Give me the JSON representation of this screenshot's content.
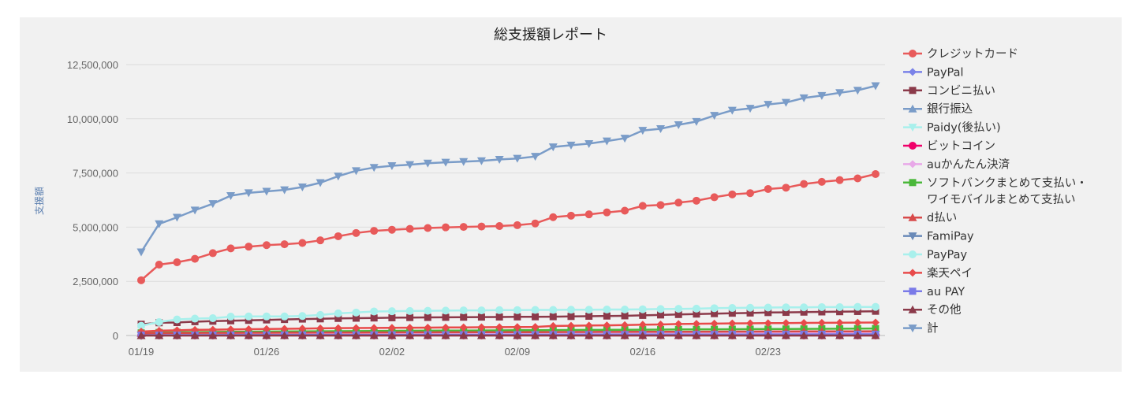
{
  "chart_data": {
    "type": "line",
    "title": "総支援額レポート",
    "ylabel": "支援額",
    "ylim": [
      0,
      13000000
    ],
    "yticks": [
      "0",
      "2,500,000",
      "5,000,000",
      "7,500,000",
      "10,000,000",
      "12,500,000"
    ],
    "ytick_values": [
      0,
      2500000,
      5000000,
      7500000,
      10000000,
      12500000
    ],
    "x": [
      "01/19",
      "01/20",
      "01/21",
      "01/22",
      "01/23",
      "01/24",
      "01/25",
      "01/26",
      "01/27",
      "01/28",
      "01/29",
      "01/30",
      "01/31",
      "02/01",
      "02/02",
      "02/03",
      "02/04",
      "02/05",
      "02/06",
      "02/07",
      "02/08",
      "02/09",
      "02/10",
      "02/11",
      "02/12",
      "02/13",
      "02/14",
      "02/15",
      "02/16",
      "02/17",
      "02/18",
      "02/19",
      "02/20",
      "02/21",
      "02/22",
      "02/23",
      "02/24",
      "02/25",
      "02/26",
      "02/27",
      "02/28",
      "03/01"
    ],
    "xticks": [
      "01/19",
      "01/26",
      "02/02",
      "02/09",
      "02/16",
      "02/23"
    ],
    "grid": true,
    "legend_position": "right",
    "series": [
      {
        "name": "クレジットカード",
        "color": "#e85a5a",
        "marker": "circle",
        "values": [
          2550000,
          3270000,
          3380000,
          3540000,
          3800000,
          4020000,
          4100000,
          4170000,
          4210000,
          4270000,
          4390000,
          4580000,
          4730000,
          4830000,
          4880000,
          4920000,
          4960000,
          4990000,
          5010000,
          5030000,
          5050000,
          5090000,
          5170000,
          5460000,
          5530000,
          5590000,
          5680000,
          5760000,
          5980000,
          6020000,
          6130000,
          6220000,
          6380000,
          6510000,
          6570000,
          6760000,
          6820000,
          6990000,
          7090000,
          7170000,
          7250000,
          7450000
        ]
      },
      {
        "name": "PayPal",
        "color": "#7a82e8",
        "marker": "diamond",
        "values": [
          30000,
          35000,
          38000,
          40000,
          42000,
          44000,
          45000,
          46000,
          47000,
          48000,
          49000,
          50000,
          51000,
          52000,
          53000,
          54000,
          55000,
          56000,
          57000,
          58000,
          59000,
          60000,
          61000,
          62000,
          63000,
          64000,
          65000,
          66000,
          67000,
          68000,
          69000,
          70000,
          71000,
          72000,
          73000,
          74000,
          75000,
          76000,
          77000,
          78000,
          79000,
          80000
        ]
      },
      {
        "name": "コンビニ払い",
        "color": "#8b3a4a",
        "marker": "square",
        "values": [
          520000,
          590000,
          600000,
          640000,
          660000,
          680000,
          700000,
          720000,
          740000,
          760000,
          770000,
          790000,
          800000,
          810000,
          820000,
          830000,
          835000,
          840000,
          845000,
          850000,
          855000,
          860000,
          865000,
          870000,
          880000,
          890000,
          900000,
          910000,
          930000,
          950000,
          970000,
          990000,
          1010000,
          1030000,
          1040000,
          1060000,
          1070000,
          1080000,
          1090000,
          1100000,
          1110000,
          1120000
        ]
      },
      {
        "name": "銀行振込",
        "color": "#7a9cc8",
        "marker": "triangle",
        "values": [
          90000,
          100000,
          105000,
          110000,
          115000,
          120000,
          122000,
          124000,
          126000,
          128000,
          130000,
          132000,
          134000,
          136000,
          138000,
          140000,
          142000,
          144000,
          146000,
          148000,
          150000,
          152000,
          154000,
          156000,
          158000,
          160000,
          162000,
          164000,
          166000,
          168000,
          170000,
          172000,
          174000,
          176000,
          178000,
          180000,
          182000,
          184000,
          186000,
          188000,
          190000,
          192000
        ]
      },
      {
        "name": "Paidy(後払い)",
        "color": "#a8f0ec",
        "marker": "triangle-down",
        "values": [
          20000,
          22000,
          24000,
          26000,
          28000,
          30000,
          31000,
          32000,
          33000,
          34000,
          35000,
          36000,
          37000,
          38000,
          39000,
          40000,
          41000,
          42000,
          43000,
          44000,
          45000,
          46000,
          47000,
          48000,
          49000,
          50000,
          51000,
          52000,
          53000,
          54000,
          55000,
          56000,
          57000,
          58000,
          59000,
          60000,
          61000,
          62000,
          63000,
          64000,
          65000,
          66000
        ]
      },
      {
        "name": "ビットコイン",
        "color": "#f0006a",
        "marker": "circle",
        "values": [
          5000,
          5000,
          5000,
          5000,
          5000,
          5000,
          5000,
          5000,
          5000,
          5000,
          5000,
          5000,
          5000,
          5000,
          5000,
          5000,
          5000,
          5000,
          5000,
          5000,
          5000,
          5000,
          5000,
          5000,
          5000,
          5000,
          5000,
          5000,
          5000,
          5000,
          5000,
          5000,
          5000,
          5000,
          5000,
          5000,
          5000,
          5000,
          5000,
          5000,
          5000,
          5000
        ]
      },
      {
        "name": "auかんたん決済",
        "color": "#e8a8e8",
        "marker": "diamond",
        "values": [
          40000,
          45000,
          48000,
          50000,
          52000,
          54000,
          56000,
          58000,
          60000,
          62000,
          64000,
          66000,
          68000,
          70000,
          72000,
          74000,
          76000,
          78000,
          80000,
          82000,
          84000,
          86000,
          88000,
          90000,
          92000,
          94000,
          96000,
          98000,
          100000,
          102000,
          104000,
          106000,
          108000,
          110000,
          112000,
          114000,
          116000,
          118000,
          120000,
          122000,
          124000,
          126000
        ]
      },
      {
        "name": "ソフトバンクまとめて支払い・ワイモバイルまとめて支払い",
        "legend_lines": [
          "ソフトバンクまとめて支払い・",
          "ワイモバイルまとめて支払い"
        ],
        "color": "#4ab83a",
        "marker": "square",
        "values": [
          120000,
          140000,
          150000,
          160000,
          165000,
          170000,
          175000,
          180000,
          185000,
          190000,
          195000,
          200000,
          205000,
          210000,
          214000,
          218000,
          222000,
          226000,
          230000,
          234000,
          238000,
          242000,
          246000,
          250000,
          254000,
          258000,
          262000,
          266000,
          270000,
          274000,
          278000,
          282000,
          286000,
          290000,
          294000,
          298000,
          302000,
          306000,
          310000,
          314000,
          318000,
          322000
        ]
      },
      {
        "name": "d払い",
        "color": "#d84a4a",
        "marker": "triangle",
        "values": [
          100000,
          110000,
          115000,
          120000,
          122000,
          124000,
          126000,
          128000,
          130000,
          132000,
          134000,
          136000,
          138000,
          140000,
          142000,
          144000,
          146000,
          148000,
          150000,
          152000,
          154000,
          156000,
          158000,
          160000,
          162000,
          164000,
          166000,
          168000,
          170000,
          172000,
          174000,
          176000,
          178000,
          180000,
          182000,
          184000,
          186000,
          188000,
          190000,
          192000,
          194000,
          196000
        ]
      },
      {
        "name": "FamiPay",
        "color": "#6a8ab8",
        "marker": "triangle-down",
        "values": [
          10000,
          11000,
          12000,
          13000,
          14000,
          15000,
          16000,
          17000,
          18000,
          19000,
          20000,
          21000,
          22000,
          23000,
          24000,
          25000,
          26000,
          27000,
          28000,
          29000,
          30000,
          31000,
          32000,
          33000,
          34000,
          35000,
          36000,
          37000,
          38000,
          39000,
          40000,
          41000,
          42000,
          43000,
          44000,
          45000,
          46000,
          47000,
          48000,
          49000,
          50000,
          51000
        ]
      },
      {
        "name": "PayPay",
        "color": "#a8f0ec",
        "marker": "circle",
        "values": [
          450000,
          620000,
          740000,
          780000,
          800000,
          870000,
          880000,
          880000,
          880000,
          900000,
          950000,
          1020000,
          1060000,
          1110000,
          1120000,
          1130000,
          1140000,
          1150000,
          1160000,
          1160000,
          1170000,
          1170000,
          1180000,
          1180000,
          1190000,
          1190000,
          1200000,
          1200000,
          1210000,
          1220000,
          1230000,
          1240000,
          1260000,
          1270000,
          1280000,
          1290000,
          1300000,
          1300000,
          1310000,
          1310000,
          1320000,
          1320000
        ]
      },
      {
        "name": "楽天ペイ",
        "color": "#e84a4a",
        "marker": "diamond",
        "values": [
          180000,
          220000,
          240000,
          260000,
          270000,
          280000,
          290000,
          300000,
          310000,
          320000,
          330000,
          340000,
          345000,
          350000,
          355000,
          360000,
          365000,
          370000,
          375000,
          380000,
          385000,
          390000,
          395000,
          440000,
          450000,
          460000,
          470000,
          480000,
          500000,
          510000,
          530000,
          540000,
          550000,
          560000,
          565000,
          570000,
          575000,
          580000,
          585000,
          590000,
          595000,
          600000
        ]
      },
      {
        "name": "au PAY",
        "color": "#7a7ae8",
        "marker": "square",
        "values": [
          15000,
          16000,
          17000,
          18000,
          19000,
          20000,
          21000,
          22000,
          23000,
          24000,
          25000,
          26000,
          27000,
          28000,
          29000,
          30000,
          31000,
          32000,
          33000,
          34000,
          35000,
          36000,
          37000,
          38000,
          39000,
          40000,
          41000,
          42000,
          43000,
          44000,
          45000,
          46000,
          47000,
          48000,
          49000,
          50000,
          51000,
          52000,
          53000,
          54000,
          55000,
          56000
        ]
      },
      {
        "name": "その他",
        "color": "#8b3a4a",
        "marker": "triangle",
        "values": [
          0,
          0,
          0,
          0,
          0,
          0,
          0,
          0,
          0,
          0,
          0,
          0,
          0,
          0,
          0,
          0,
          0,
          0,
          0,
          0,
          0,
          0,
          0,
          0,
          0,
          0,
          0,
          0,
          0,
          0,
          0,
          0,
          0,
          0,
          0,
          0,
          0,
          0,
          0,
          0,
          0,
          0
        ]
      },
      {
        "name": "計",
        "color": "#7a9cc8",
        "marker": "triangle-down",
        "values": [
          3850000,
          5150000,
          5450000,
          5780000,
          6080000,
          6450000,
          6580000,
          6650000,
          6720000,
          6850000,
          7050000,
          7350000,
          7600000,
          7750000,
          7830000,
          7880000,
          7950000,
          7990000,
          8020000,
          8060000,
          8120000,
          8170000,
          8260000,
          8700000,
          8780000,
          8850000,
          8970000,
          9100000,
          9460000,
          9540000,
          9720000,
          9870000,
          10150000,
          10390000,
          10480000,
          10660000,
          10750000,
          10960000,
          11070000,
          11200000,
          11310000,
          11520000
        ]
      }
    ]
  }
}
